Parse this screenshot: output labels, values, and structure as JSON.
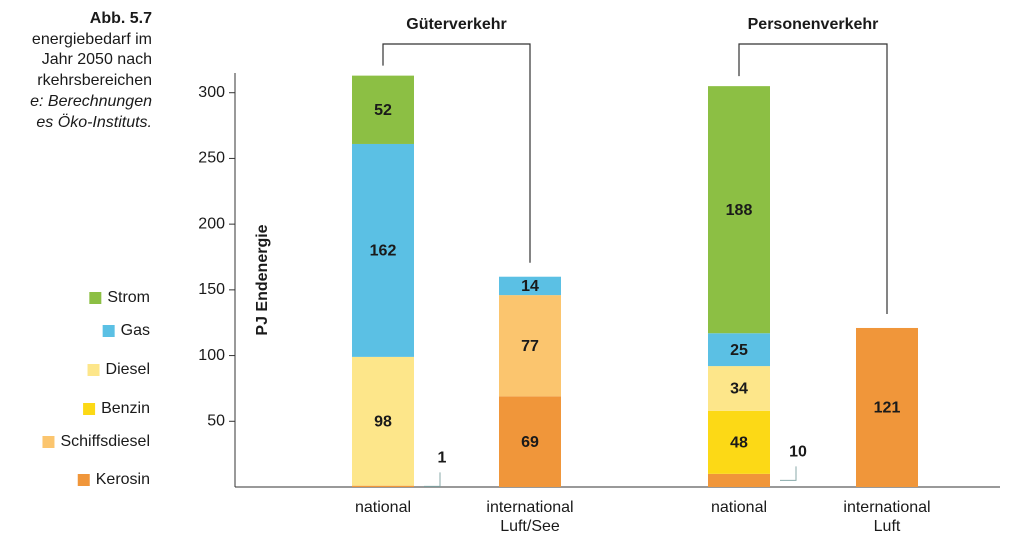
{
  "chart_data": {
    "type": "stacked-bar",
    "caption": {
      "label": "Abb. 5.7",
      "lines": [
        "energiebedarf im",
        "Jahr 2050 nach",
        "rkehrsbereichen"
      ],
      "source": [
        "e: Berechnungen",
        "es Öko-Instituts."
      ]
    },
    "groups": [
      "Güterverkehr",
      "Personenverkehr"
    ],
    "ylabel": "PJ Endenergie",
    "categories": [
      "national",
      "international\nLuft/See",
      "national",
      "international\nLuft"
    ],
    "series": [
      {
        "name": "Kerosin",
        "color": "#f0963a",
        "values": [
          1,
          69,
          10,
          121
        ]
      },
      {
        "name": "Schiffsdiesel",
        "color": "#fbc56e",
        "values": [
          null,
          77,
          null,
          null
        ]
      },
      {
        "name": "Benzin",
        "color": "#fcd916",
        "values": [
          null,
          null,
          48,
          null
        ]
      },
      {
        "name": "Diesel",
        "color": "#fde68a",
        "values": [
          98,
          null,
          34,
          null
        ]
      },
      {
        "name": "Gas",
        "color": "#5bc0e4",
        "values": [
          162,
          14,
          25,
          null
        ]
      },
      {
        "name": "Strom",
        "color": "#8cbf44",
        "values": [
          52,
          null,
          188,
          null
        ]
      }
    ],
    "ylim": [
      0,
      315
    ],
    "yticks": [
      50,
      100,
      150,
      200,
      250,
      300
    ]
  }
}
